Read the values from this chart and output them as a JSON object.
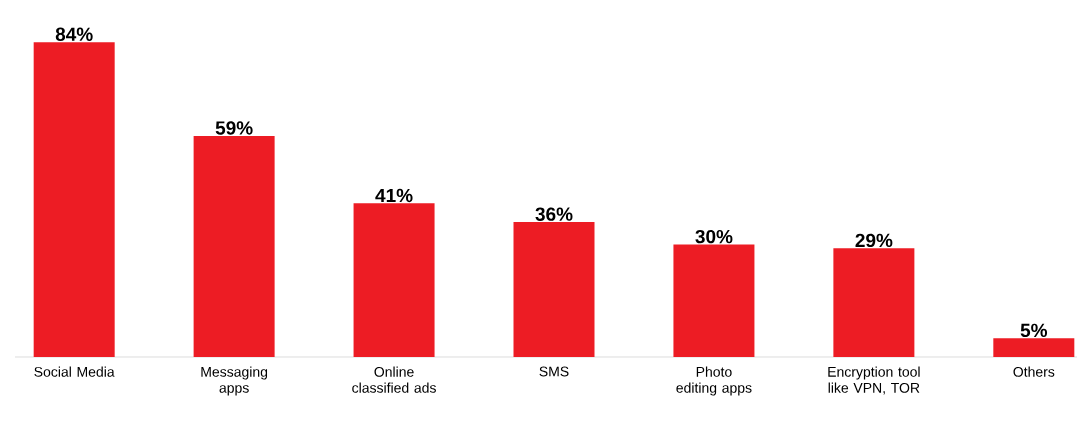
{
  "chart_data": {
    "type": "bar",
    "categories": [
      "Social Media",
      "Messaging apps",
      "Online classified ads",
      "SMS",
      "Photo editing apps",
      "Encryption tool like VPN, TOR",
      "Others"
    ],
    "values": [
      84,
      59,
      41,
      36,
      30,
      29,
      5
    ],
    "value_labels": [
      "84%",
      "59%",
      "41%",
      "36%",
      "30%",
      "29%",
      "5%"
    ],
    "color": "#ed1c24"
  }
}
